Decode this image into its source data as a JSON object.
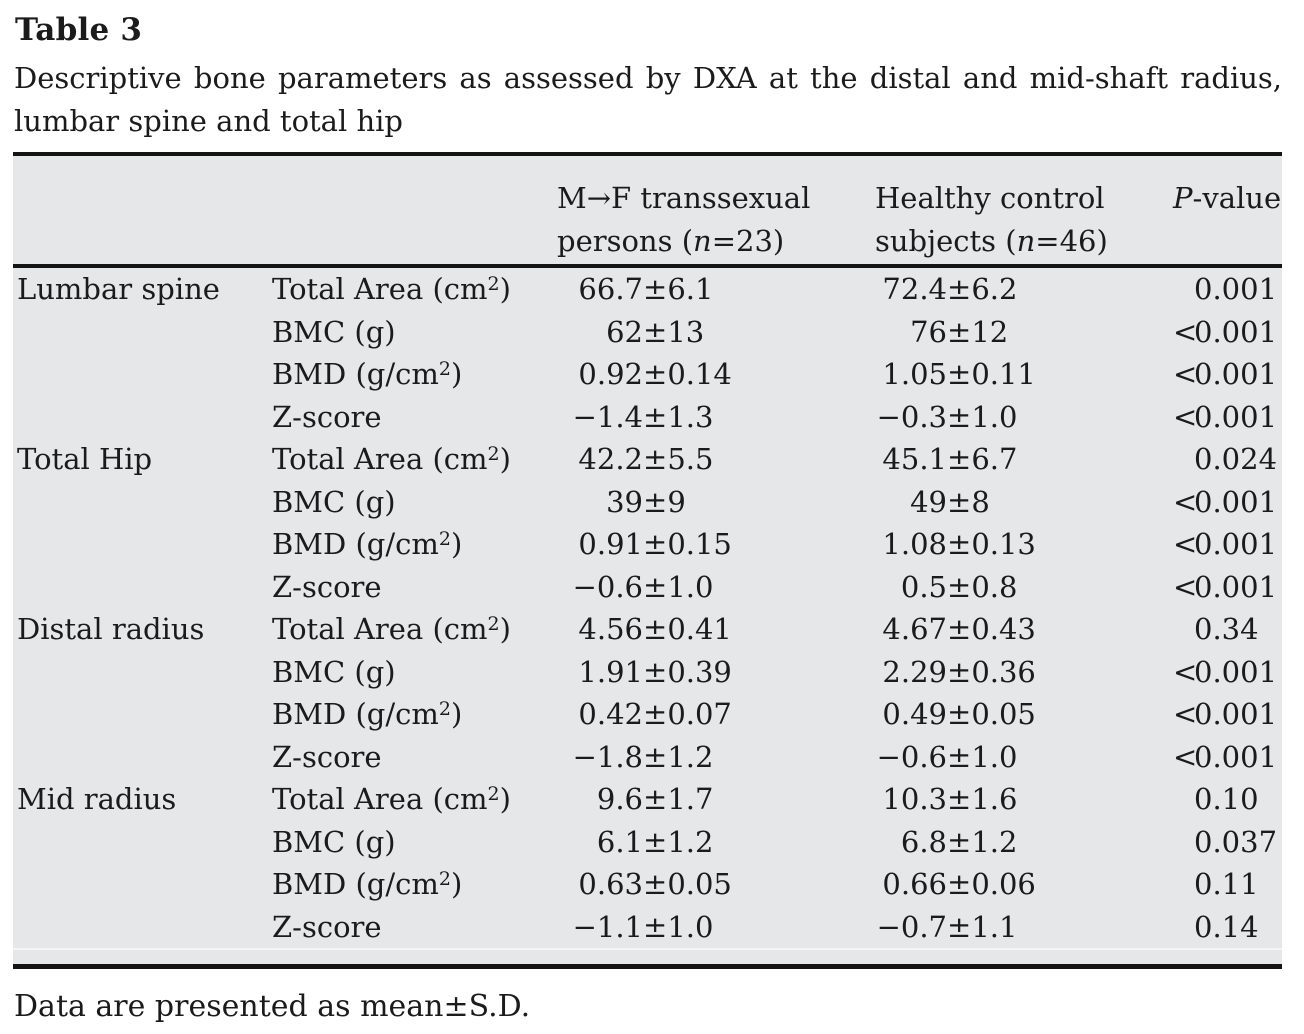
{
  "title": "Table 3",
  "caption_line1": "Descriptive bone parameters as assessed by DXA at the distal and mid-shaft radius,",
  "caption_line2": "lumbar spine and total hip",
  "footnote": "Data are presented as mean±S.D.",
  "symbols": {
    "pm": "±"
  },
  "colors": {
    "page_background": "#ffffff",
    "table_background": "#e6e7e8",
    "rule": "#141414",
    "text": "#1b1b1b"
  },
  "header": {
    "mf_line1": "M→F transsexual",
    "mf_line2_pre": "persons (",
    "mf_line2_n": "n",
    "mf_line2_post": "=23)",
    "hc_line1": "Healthy control",
    "hc_line2_pre": "subjects (",
    "hc_line2_n": "n",
    "hc_line2_post": "=46)",
    "p_italic": "P",
    "p_rest": "-value"
  },
  "sections": [
    {
      "region": "Lumbar spine",
      "rows": [
        {
          "param_pre": "Total Area (cm",
          "param_sup": "2",
          "param_post": ")",
          "mf_mean": "66.7",
          "mf_sd": "6.1",
          "hc_mean": "72.4",
          "hc_sd": "6.2",
          "p_prefix": "",
          "p_value": "0.001"
        },
        {
          "param_pre": "BMC (g)",
          "param_sup": "",
          "param_post": "",
          "mf_mean": "62",
          "mf_sd": "13",
          "hc_mean": "76",
          "hc_sd": "12",
          "p_prefix": "<",
          "p_value": "0.001"
        },
        {
          "param_pre": "BMD (g/cm",
          "param_sup": "2",
          "param_post": ")",
          "mf_mean": "0.92",
          "mf_sd": "0.14",
          "hc_mean": "1.05",
          "hc_sd": "0.11",
          "p_prefix": "<",
          "p_value": "0.001"
        },
        {
          "param_pre": "Z-score",
          "param_sup": "",
          "param_post": "",
          "mf_mean": "−1.4",
          "mf_sd": "1.3",
          "hc_mean": "−0.3",
          "hc_sd": "1.0",
          "p_prefix": "<",
          "p_value": "0.001"
        }
      ]
    },
    {
      "region": "Total Hip",
      "rows": [
        {
          "param_pre": "Total Area (cm",
          "param_sup": "2",
          "param_post": ")",
          "mf_mean": "42.2",
          "mf_sd": "5.5",
          "hc_mean": "45.1",
          "hc_sd": "6.7",
          "p_prefix": "",
          "p_value": "0.024"
        },
        {
          "param_pre": "BMC (g)",
          "param_sup": "",
          "param_post": "",
          "mf_mean": "39",
          "mf_sd": "9",
          "hc_mean": "49",
          "hc_sd": "8",
          "p_prefix": "<",
          "p_value": "0.001"
        },
        {
          "param_pre": "BMD (g/cm",
          "param_sup": "2",
          "param_post": ")",
          "mf_mean": "0.91",
          "mf_sd": "0.15",
          "hc_mean": "1.08",
          "hc_sd": "0.13",
          "p_prefix": "<",
          "p_value": "0.001"
        },
        {
          "param_pre": "Z-score",
          "param_sup": "",
          "param_post": "",
          "mf_mean": "−0.6",
          "mf_sd": "1.0",
          "hc_mean": "0.5",
          "hc_sd": "0.8",
          "p_prefix": "<",
          "p_value": "0.001"
        }
      ]
    },
    {
      "region": "Distal radius",
      "rows": [
        {
          "param_pre": "Total Area (cm",
          "param_sup": "2",
          "param_post": ")",
          "mf_mean": "4.56",
          "mf_sd": "0.41",
          "hc_mean": "4.67",
          "hc_sd": "0.43",
          "p_prefix": "",
          "p_value": "0.34"
        },
        {
          "param_pre": "BMC (g)",
          "param_sup": "",
          "param_post": "",
          "mf_mean": "1.91",
          "mf_sd": "0.39",
          "hc_mean": "2.29",
          "hc_sd": "0.36",
          "p_prefix": "<",
          "p_value": "0.001"
        },
        {
          "param_pre": "BMD (g/cm",
          "param_sup": "2",
          "param_post": ")",
          "mf_mean": "0.42",
          "mf_sd": "0.07",
          "hc_mean": "0.49",
          "hc_sd": "0.05",
          "p_prefix": "<",
          "p_value": "0.001"
        },
        {
          "param_pre": "Z-score",
          "param_sup": "",
          "param_post": "",
          "mf_mean": "−1.8",
          "mf_sd": "1.2",
          "hc_mean": "−0.6",
          "hc_sd": "1.0",
          "p_prefix": "<",
          "p_value": "0.001"
        }
      ]
    },
    {
      "region": "Mid radius",
      "rows": [
        {
          "param_pre": "Total Area (cm",
          "param_sup": "2",
          "param_post": ")",
          "mf_mean": "9.6",
          "mf_sd": "1.7",
          "hc_mean": "10.3",
          "hc_sd": "1.6",
          "p_prefix": "",
          "p_value": "0.10"
        },
        {
          "param_pre": "BMC (g)",
          "param_sup": "",
          "param_post": "",
          "mf_mean": "6.1",
          "mf_sd": "1.2",
          "hc_mean": "6.8",
          "hc_sd": "1.2",
          "p_prefix": "",
          "p_value": "0.037"
        },
        {
          "param_pre": "BMD (g/cm",
          "param_sup": "2",
          "param_post": ")",
          "mf_mean": "0.63",
          "mf_sd": "0.05",
          "hc_mean": "0.66",
          "hc_sd": "0.06",
          "p_prefix": "",
          "p_value": "0.11"
        },
        {
          "param_pre": "Z-score",
          "param_sup": "",
          "param_post": "",
          "mf_mean": "−1.1",
          "mf_sd": "1.0",
          "hc_mean": "−0.7",
          "hc_sd": "1.1",
          "p_prefix": "",
          "p_value": "0.14"
        }
      ]
    }
  ]
}
